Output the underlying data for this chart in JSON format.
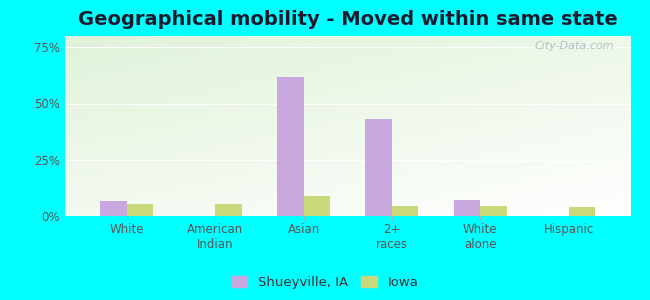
{
  "title": "Geographical mobility - Moved within same state",
  "categories": [
    "White",
    "American\nIndian",
    "Asian",
    "2+\nraces",
    "White\nalone",
    "Hispanic"
  ],
  "shueyville_values": [
    6.5,
    0,
    62,
    43,
    7,
    0
  ],
  "iowa_values": [
    5.5,
    5.5,
    9,
    4.5,
    4.5,
    4
  ],
  "shueyville_color": "#c9a8e0",
  "iowa_color": "#c8d87a",
  "yticks": [
    0,
    25,
    50,
    75
  ],
  "ylim": [
    0,
    80
  ],
  "bar_width": 0.3,
  "legend_labels": [
    "Shueyville, IA",
    "Iowa"
  ],
  "outer_background": "#00ffff",
  "title_fontsize": 14,
  "tick_fontsize": 8.5,
  "legend_fontsize": 9.5,
  "title_color": "#1a1a2e",
  "tick_color": "#555555"
}
